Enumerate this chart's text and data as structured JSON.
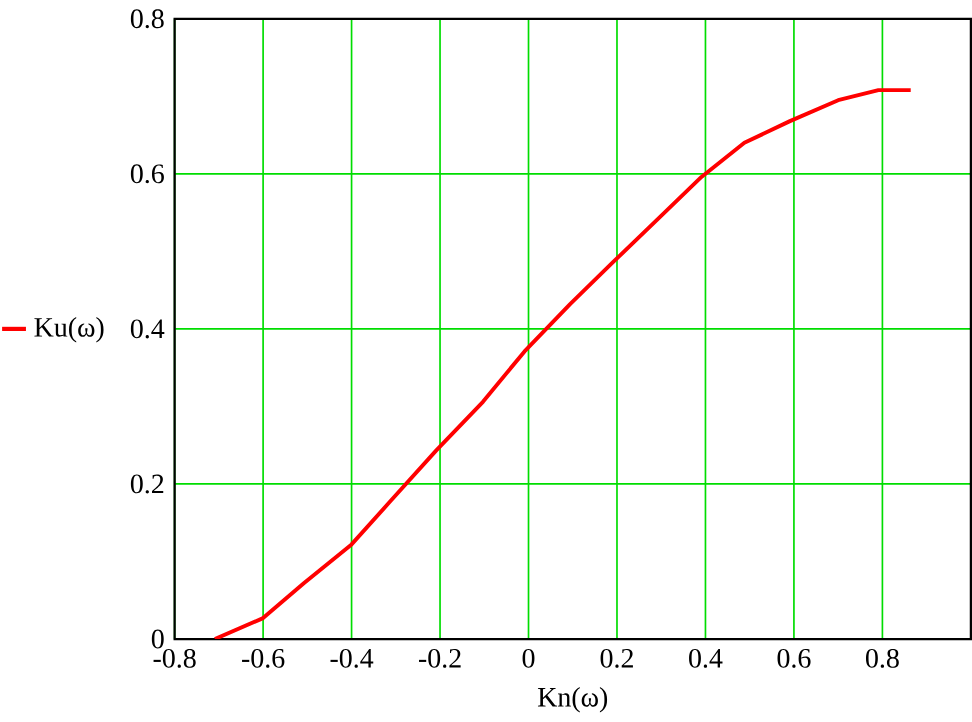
{
  "chart_data": {
    "type": "line",
    "xlabel": "Kn(ω)",
    "x": [
      -0.709,
      -0.6,
      -0.508,
      -0.4,
      -0.315,
      -0.209,
      -0.103,
      -0.009,
      0.094,
      0.191,
      0.291,
      0.391,
      0.488,
      0.591,
      0.7,
      0.791,
      0.864
    ],
    "series": [
      {
        "name": "Ku(ω)",
        "color": "#ff0000",
        "values": [
          0,
          0.027,
          0.072,
          0.122,
          0.176,
          0.243,
          0.306,
          0.371,
          0.432,
          0.486,
          0.541,
          0.596,
          0.64,
          0.668,
          0.695,
          0.708,
          0.708
        ]
      }
    ],
    "xlim": [
      -0.8,
      1.0
    ],
    "ylim": [
      0,
      0.8
    ],
    "xticks": [
      -0.8,
      -0.6,
      -0.4,
      -0.2,
      0,
      0.2,
      0.4,
      0.6,
      0.8
    ],
    "yticks": [
      0,
      0.2,
      0.4,
      0.6,
      0.8
    ],
    "grid": true,
    "legend": "left",
    "marker": "none",
    "line_style": "solid"
  }
}
